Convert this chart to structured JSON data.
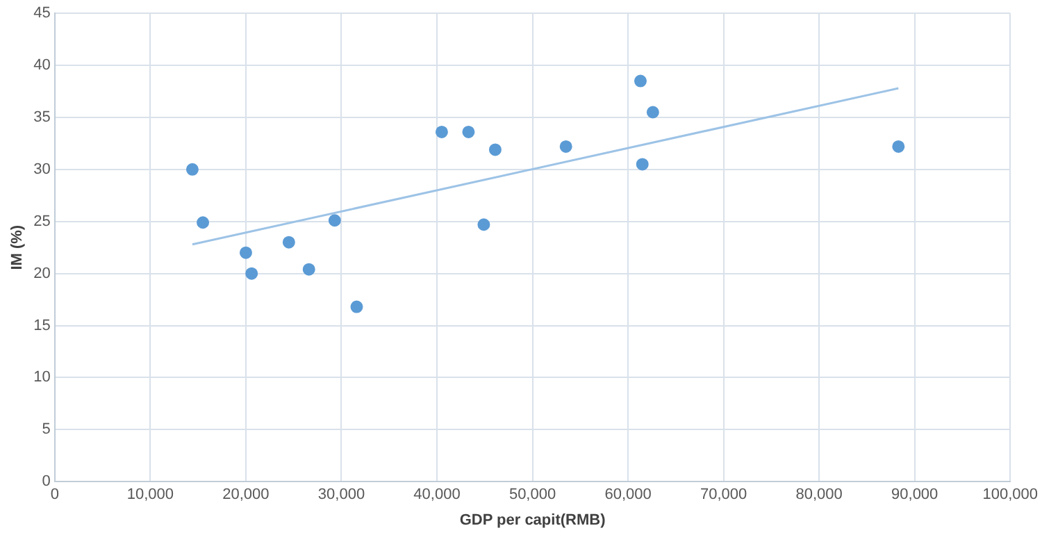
{
  "chart_data": {
    "type": "scatter",
    "xlabel": "GDP per capit(RMB)",
    "ylabel": "IM (%)",
    "xlim": [
      0,
      100000
    ],
    "xticks": [
      {
        "value": 0,
        "label": "0"
      },
      {
        "value": 10000,
        "label": "10,000"
      },
      {
        "value": 20000,
        "label": "20,000"
      },
      {
        "value": 30000,
        "label": "30,000"
      },
      {
        "value": 40000,
        "label": "40,000"
      },
      {
        "value": 50000,
        "label": "50,000"
      },
      {
        "value": 60000,
        "label": "60,000"
      },
      {
        "value": 70000,
        "label": "70,000"
      },
      {
        "value": 80000,
        "label": "80,000"
      },
      {
        "value": 90000,
        "label": "90,000"
      },
      {
        "value": 100000,
        "label": "100,000"
      }
    ],
    "ylim": [
      0,
      45
    ],
    "yticks": [
      0,
      5,
      10,
      15,
      20,
      25,
      30,
      35,
      40,
      45
    ],
    "grid": true,
    "legend": false,
    "marker": "circle",
    "series": [
      {
        "color": "#5b9bd5",
        "x": [
          14400,
          15500,
          20000,
          20600,
          24500,
          26600,
          29300,
          31600,
          40500,
          43300,
          44900,
          46100,
          53500,
          61300,
          62600,
          61500,
          88300
        ],
        "values": [
          30.0,
          24.9,
          22.0,
          20.0,
          23.0,
          20.4,
          25.1,
          16.8,
          33.6,
          33.6,
          24.7,
          31.9,
          32.2,
          38.5,
          35.5,
          30.5,
          32.2
        ]
      },
      {
        "type": "line",
        "color": "#9dc3e6",
        "x": [
          14400,
          88300
        ],
        "values": [
          22.8,
          37.8
        ],
        "marker": "none",
        "line_style": "solid"
      }
    ]
  }
}
